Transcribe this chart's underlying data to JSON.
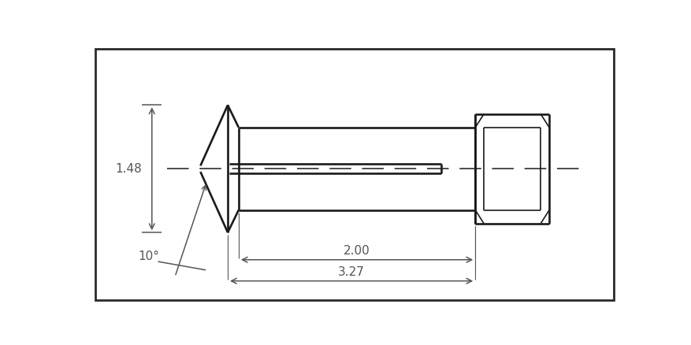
{
  "background_color": "#ffffff",
  "line_color": "#1a1a1a",
  "dim_color": "#555555",
  "border_color": "#2a2a2a",
  "line_width": 1.9,
  "thin_lw": 1.2,
  "dim_lw": 1.1,
  "fig_width": 8.78,
  "fig_height": 4.38,
  "dpi": 100,
  "dim_148": "1.48",
  "dim_200": "2.00",
  "dim_327": "3.27",
  "dim_angle": "10°"
}
